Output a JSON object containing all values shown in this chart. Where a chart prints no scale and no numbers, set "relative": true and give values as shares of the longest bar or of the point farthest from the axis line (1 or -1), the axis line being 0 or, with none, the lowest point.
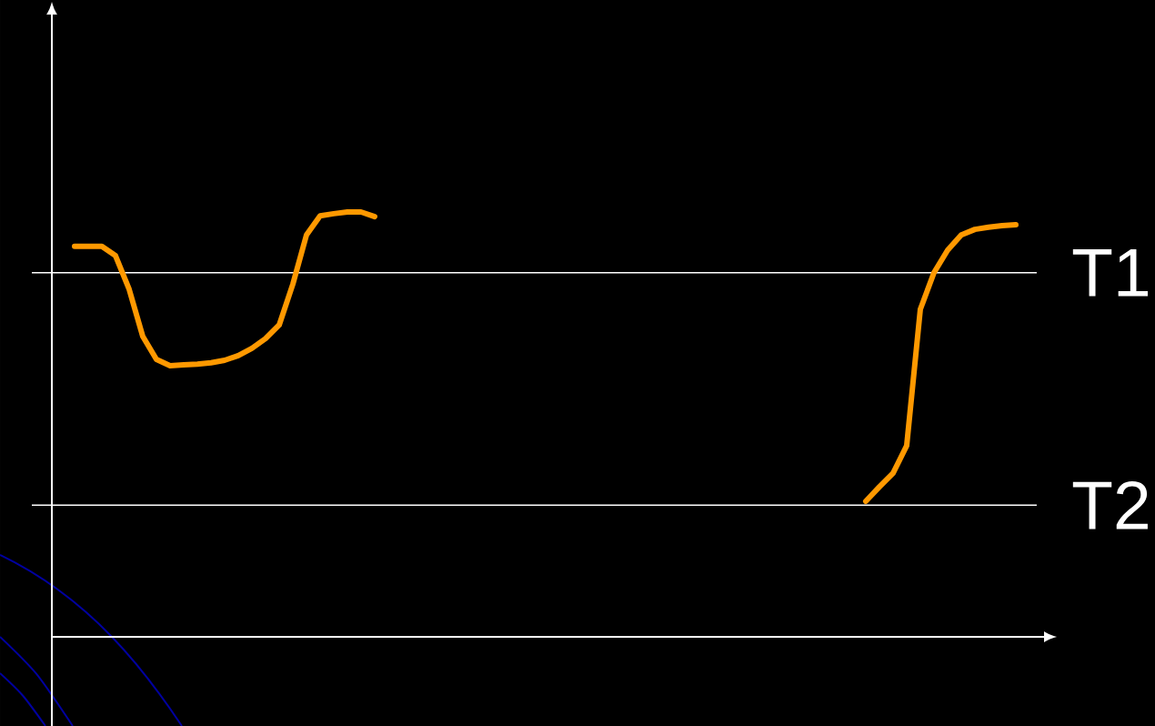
{
  "chart_data": {
    "type": "line",
    "relative": true,
    "categories": [
      null,
      null,
      null,
      null,
      null,
      null,
      null,
      null,
      null,
      null,
      null,
      null,
      null,
      null,
      null,
      null,
      null,
      null,
      null,
      null,
      null,
      null,
      null,
      null,
      null,
      null,
      null,
      null,
      null,
      null,
      null,
      null,
      null,
      null,
      null,
      null,
      null,
      null,
      null,
      null,
      null,
      null,
      null,
      null,
      null,
      null,
      null,
      null,
      null,
      null,
      null,
      null,
      null,
      null,
      null,
      null,
      null,
      null,
      null,
      null,
      null,
      null,
      null,
      null,
      null,
      null,
      null,
      null,
      null,
      null
    ],
    "series": [
      {
        "color": "#ff9900",
        "values": [
          0.919,
          0.919,
          0.919,
          0.897,
          0.818,
          0.707,
          0.653,
          0.638,
          0.64,
          0.642,
          0.645,
          0.651,
          0.662,
          0.679,
          0.702,
          0.734,
          0.83,
          0.946,
          0.991,
          0.996,
          1,
          1,
          0.989,
          null,
          null,
          null,
          null,
          null,
          null,
          null,
          null,
          null,
          null,
          null,
          null,
          null,
          null,
          null,
          null,
          null,
          null,
          null,
          null,
          null,
          null,
          null,
          null,
          null,
          null,
          null,
          null,
          null,
          null,
          null,
          null,
          null,
          null,
          null,
          null,
          null,
          null,
          null,
          null,
          null,
          null,
          null,
          null,
          null,
          null,
          null
        ]
      },
      {
        "color": "#ff9900",
        "values": [
          null,
          null,
          null,
          null,
          null,
          null,
          null,
          null,
          null,
          null,
          null,
          null,
          null,
          null,
          null,
          null,
          null,
          null,
          null,
          null,
          null,
          null,
          null,
          null,
          null,
          null,
          null,
          null,
          null,
          null,
          null,
          null,
          null,
          null,
          null,
          null,
          null,
          null,
          null,
          null,
          null,
          null,
          null,
          null,
          null,
          null,
          null,
          null,
          null,
          null,
          null,
          null,
          null,
          null,
          null,
          null,
          null,
          null,
          0.319,
          0.353,
          0.385,
          0.45,
          0.771,
          0.857,
          0.91,
          0.946,
          0.959,
          0.964,
          0.968,
          0.97
        ]
      }
    ],
    "ref_lines": [
      {
        "axis": "y",
        "value": 0.857,
        "label": "T1",
        "color": "#ffffff"
      },
      {
        "axis": "y",
        "value": 0.31,
        "label": "T2",
        "color": "#ffffff"
      }
    ],
    "line_style": "solid"
  }
}
